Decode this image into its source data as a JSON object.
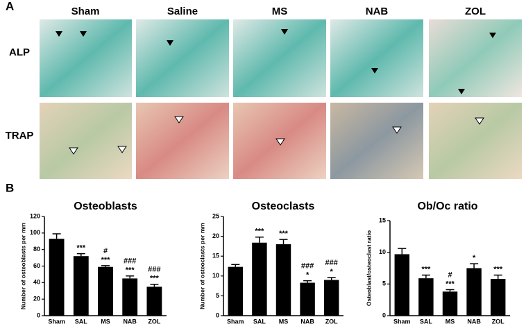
{
  "panel_labels": [
    "A",
    "B"
  ],
  "image_grid": {
    "columns": [
      "Sham",
      "Saline",
      "MS",
      "NAB",
      "ZOL"
    ],
    "rows": [
      "ALP",
      "TRAP"
    ]
  },
  "chart_data": [
    {
      "type": "bar",
      "title": "Osteoblasts",
      "y_label": "Number of osteoblasts per mm",
      "categories": [
        "Sham",
        "SAL",
        "MS",
        "NAB",
        "ZOL"
      ],
      "values": [
        93,
        72,
        59,
        45,
        35
      ],
      "errors": [
        6,
        3,
        1.5,
        3,
        3
      ],
      "annotations": [
        [],
        [
          "***"
        ],
        [
          "#",
          "***"
        ],
        [
          "###",
          "***"
        ],
        [
          "###",
          "***"
        ]
      ],
      "color": "#000000",
      "ylim": [
        0,
        120
      ],
      "yticks": [
        0,
        20,
        40,
        60,
        80,
        100,
        120
      ]
    },
    {
      "type": "bar",
      "title": "Osteoclasts",
      "y_label": "Number of osteoclasts per mm",
      "categories": [
        "Sham",
        "SAL",
        "MS",
        "NAB",
        "ZOL"
      ],
      "values": [
        12.3,
        18.4,
        18,
        8.3,
        9
      ],
      "errors": [
        0.6,
        1.4,
        1.2,
        0.5,
        0.6
      ],
      "annotations": [
        [],
        [
          "***"
        ],
        [
          "***"
        ],
        [
          "###",
          "*"
        ],
        [
          "###",
          "*"
        ]
      ],
      "color": "#000000",
      "ylim": [
        0,
        25
      ],
      "yticks": [
        0,
        5,
        10,
        15,
        20,
        25
      ]
    },
    {
      "type": "bar",
      "title": "Ob/Oc ratio",
      "y_label": "Osteoblast/osteoclast ratio",
      "categories": [
        "Sham",
        "SAL",
        "MS",
        "NAB",
        "ZOL"
      ],
      "values": [
        9.7,
        5.9,
        3.8,
        7.5,
        5.8
      ],
      "errors": [
        0.9,
        0.5,
        0.3,
        0.7,
        0.6
      ],
      "annotations": [
        [],
        [
          "***"
        ],
        [
          "#",
          "***"
        ],
        [
          "*"
        ],
        [
          "***"
        ]
      ],
      "color": "#000000",
      "ylim": [
        0,
        15
      ],
      "yticks": [
        0,
        5,
        10,
        15
      ]
    }
  ]
}
